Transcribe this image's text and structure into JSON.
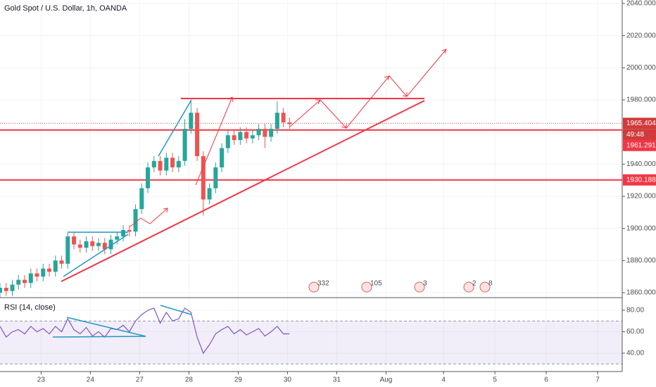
{
  "chart_data": {
    "type": "candlestick",
    "title": "Gold Spot / U.S. Dollar, 1h, OANDA",
    "x": [
      -20,
      -17,
      -14,
      -11,
      -8,
      -5,
      -2,
      1,
      4,
      7,
      10,
      13,
      16,
      19,
      22,
      25,
      28,
      31,
      34,
      37,
      40,
      43,
      46,
      49,
      52,
      55,
      58,
      61,
      64,
      67,
      70,
      73,
      76,
      79,
      82,
      85,
      88,
      91,
      94,
      97,
      100,
      103,
      106,
      109,
      112,
      115,
      118,
      121
    ],
    "open": [
      1860,
      1863,
      1861,
      1865,
      1868,
      1866,
      1872,
      1870,
      1875,
      1873,
      1880,
      1878,
      1895,
      1890,
      1888,
      1892,
      1889,
      1891,
      1887,
      1893,
      1895,
      1899,
      1898,
      1912,
      1925,
      1938,
      1942,
      1936,
      1944,
      1938,
      1942,
      1962,
      1972,
      1945,
      1918,
      1925,
      1938,
      1950,
      1958,
      1955,
      1960,
      1956,
      1958,
      1962,
      1957,
      1962,
      1972,
      1966
    ],
    "high": [
      1866,
      1866,
      1868,
      1871,
      1871,
      1875,
      1875,
      1878,
      1878,
      1883,
      1883,
      1898,
      1898,
      1893,
      1895,
      1895,
      1894,
      1894,
      1896,
      1898,
      1902,
      1902,
      1915,
      1928,
      1941,
      1945,
      1945,
      1947,
      1947,
      1945,
      1968,
      1980,
      1975,
      1948,
      1928,
      1941,
      1953,
      1961,
      1961,
      1963,
      1963,
      1961,
      1965,
      1965,
      1965,
      1979,
      1975,
      1969
    ],
    "low": [
      1857,
      1858,
      1858,
      1862,
      1863,
      1863,
      1867,
      1867,
      1870,
      1870,
      1875,
      1875,
      1887,
      1885,
      1885,
      1886,
      1886,
      1884,
      1884,
      1890,
      1892,
      1895,
      1895,
      1909,
      1922,
      1935,
      1933,
      1933,
      1935,
      1935,
      1939,
      1959,
      1942,
      1908,
      1915,
      1922,
      1935,
      1947,
      1952,
      1952,
      1953,
      1953,
      1955,
      1950,
      1954,
      1959,
      1963,
      1962
    ],
    "close": [
      1863,
      1861,
      1865,
      1868,
      1866,
      1872,
      1870,
      1875,
      1873,
      1880,
      1878,
      1895,
      1890,
      1888,
      1892,
      1889,
      1891,
      1887,
      1893,
      1895,
      1899,
      1898,
      1912,
      1925,
      1938,
      1942,
      1936,
      1944,
      1938,
      1942,
      1962,
      1972,
      1945,
      1918,
      1925,
      1938,
      1950,
      1958,
      1955,
      1960,
      1956,
      1958,
      1962,
      1957,
      1962,
      1972,
      1966,
      1965
    ],
    "up_color": "#26a69a",
    "down_color": "#ef5350",
    "xlim": [
      -20,
      283
    ],
    "xticks": [
      {
        "value": 0,
        "label": "23"
      },
      {
        "value": 24,
        "label": "24"
      },
      {
        "value": 48,
        "label": "27"
      },
      {
        "value": 72,
        "label": "28"
      },
      {
        "value": 96,
        "label": "29"
      },
      {
        "value": 120,
        "label": "30"
      },
      {
        "value": 144,
        "label": "31"
      },
      {
        "value": 168,
        "label": "Aug"
      },
      {
        "value": 196,
        "label": "4"
      },
      {
        "value": 221,
        "label": "5"
      },
      {
        "value": 246,
        "label": "6"
      },
      {
        "value": 271,
        "label": "7"
      }
    ],
    "ylim": [
      1856.9,
      2042.2
    ],
    "yticks": [
      {
        "value": 1860,
        "label": "1860.000"
      },
      {
        "value": 1880,
        "label": "1880.000"
      },
      {
        "value": 1900,
        "label": "1900.000"
      },
      {
        "value": 1920,
        "label": "1920.000"
      },
      {
        "value": 1940,
        "label": "1940.000"
      },
      {
        "value": 1960,
        "label": "1960.000"
      },
      {
        "value": 1980,
        "label": "1980.000"
      },
      {
        "value": 2000,
        "label": "2000.000"
      },
      {
        "value": 2020,
        "label": "2020.000"
      },
      {
        "value": 2040,
        "label": "2040.000"
      }
    ],
    "levels": [
      1961.291,
      1930.188
    ],
    "level_color": "#f23645",
    "last_price": 1965.404,
    "countdown": "49:48",
    "events": [
      332,
      105,
      3,
      2,
      8
    ],
    "rsi": {
      "name": "RSI (14, close)",
      "color": "#7e57c2",
      "values": [
        65,
        55,
        60,
        62,
        58,
        65,
        60,
        63,
        58,
        65,
        60,
        72,
        62,
        58,
        64,
        56,
        60,
        55,
        63,
        62,
        66,
        60,
        70,
        76,
        80,
        82,
        68,
        78,
        70,
        72,
        82,
        78,
        55,
        40,
        48,
        58,
        62,
        65,
        58,
        62,
        57,
        60,
        63,
        56,
        60,
        65,
        58,
        58
      ],
      "ylim": [
        26.2,
        91.8
      ],
      "yticks": [
        {
          "value": 40,
          "label": "40.00"
        },
        {
          "value": 60,
          "label": "60.00"
        },
        {
          "value": 80,
          "label": "80.00"
        }
      ],
      "band": [
        30,
        70
      ]
    }
  }
}
